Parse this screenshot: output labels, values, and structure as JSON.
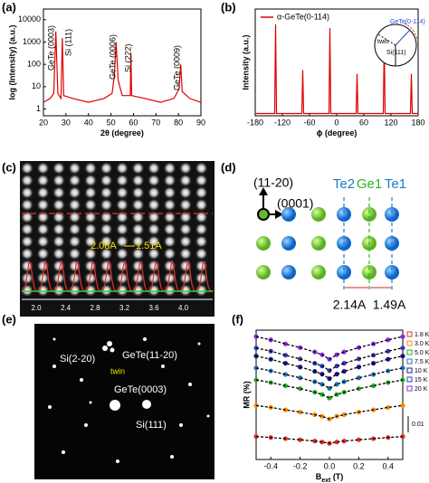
{
  "panel_labels": [
    "(a)",
    "(b)",
    "(c)",
    "(d)",
    "(e)",
    "(f)"
  ],
  "chart_data": [
    {
      "type": "line",
      "xlabel": "2θ (degree)",
      "ylabel": "log (Intensity) (a.u.)",
      "log_y": true,
      "x": [
        20,
        23,
        24.6,
        25.5,
        26.4,
        27.8,
        28.4,
        29,
        33,
        40,
        47,
        50.5,
        51.5,
        52.3,
        53.2,
        55,
        58.6,
        58.9,
        59.2,
        65,
        72,
        78,
        80.3,
        81,
        81.7,
        85,
        90
      ],
      "series": [
        {
          "color": "#e00000",
          "values": [
            2,
            3,
            5,
            3000,
            5,
            3,
            1500,
            4,
            3,
            2,
            3,
            5,
            30,
            1000,
            20,
            4,
            4,
            300,
            4,
            3,
            2,
            3,
            8,
            100,
            6,
            3,
            2
          ]
        }
      ],
      "xlim": [
        20,
        90
      ],
      "xticks": [
        20,
        30,
        40,
        50,
        60,
        70,
        80,
        90
      ],
      "ylim": [
        0.5,
        30000
      ],
      "yticks": [
        1,
        10,
        100,
        1000,
        10000
      ],
      "annotations": [
        "GeTe (0003)",
        "Si (111)",
        "GeTe (0006)",
        "Si (222)",
        "GeTe (0009)"
      ]
    },
    {
      "type": "line",
      "xlabel": "ϕ (degree)",
      "ylabel": "Intensity (a.u.)",
      "x": [
        -180,
        -137,
        -135,
        -133,
        -77,
        -75,
        -73,
        -17,
        -15,
        -13,
        43,
        45,
        47,
        103,
        105,
        107,
        163,
        165,
        167,
        180
      ],
      "series": [
        {
          "name": "α-GeTe(0-114)",
          "color": "#e00000",
          "values": [
            0.3,
            0.3,
            12,
            0.3,
            0.3,
            6,
            0.3,
            0.3,
            11.5,
            0.3,
            0.3,
            5.5,
            0.3,
            0.3,
            9.5,
            0.3,
            0.3,
            5.5,
            0.3,
            0.3
          ]
        }
      ],
      "xlim": [
        -180,
        180
      ],
      "xticks": [
        -180,
        -120,
        -60,
        0,
        60,
        120,
        180
      ],
      "ylim": [
        0,
        14
      ],
      "legend": "upper left",
      "inset_labels": [
        "GeTe(0-114)",
        "twin",
        "Si(111)"
      ]
    },
    {
      "type": "line",
      "markers": true,
      "xlabel": "B",
      "xlabel_sub": "ext",
      "xlabel_unit": " (T)",
      "ylabel": "MR (%)",
      "x": [
        -0.5,
        -0.4,
        -0.3,
        -0.2,
        -0.1,
        -0.05,
        0,
        0.05,
        0.1,
        0.2,
        0.3,
        0.4,
        0.5
      ],
      "series": [
        {
          "name": "1.8 K",
          "color": "#e03030",
          "values": [
            0.0142,
            0.0136,
            0.0129,
            0.0122,
            0.0114,
            0.0108,
            0.01,
            0.0108,
            0.0114,
            0.0122,
            0.0129,
            0.0136,
            0.0142
          ]
        },
        {
          "name": "3.0 K",
          "color": "#ff8c00",
          "values": [
            0.0334,
            0.0322,
            0.0307,
            0.0293,
            0.0277,
            0.0267,
            0.025,
            0.0267,
            0.0277,
            0.0293,
            0.0307,
            0.0322,
            0.0334
          ]
        },
        {
          "name": "5.0 K",
          "color": "#22b022",
          "values": [
            0.0492,
            0.0476,
            0.0456,
            0.0438,
            0.0416,
            0.0402,
            0.038,
            0.0402,
            0.0416,
            0.0438,
            0.0456,
            0.0476,
            0.0492
          ]
        },
        {
          "name": "7.5 K",
          "color": "#1f77b4",
          "values": [
            0.0566,
            0.0548,
            0.0526,
            0.0505,
            0.0481,
            0.0465,
            0.044,
            0.0465,
            0.0481,
            0.0505,
            0.0526,
            0.0548,
            0.0566
          ]
        },
        {
          "name": "10 K",
          "color": "#1a1a8a",
          "values": [
            0.064,
            0.062,
            0.0595,
            0.0572,
            0.0545,
            0.0528,
            0.05,
            0.0528,
            0.0545,
            0.0572,
            0.0595,
            0.062,
            0.064
          ]
        },
        {
          "name": "15 K",
          "color": "#3a3ab0",
          "values": [
            0.069,
            0.067,
            0.0645,
            0.0622,
            0.0595,
            0.0578,
            0.055,
            0.0578,
            0.0595,
            0.0622,
            0.0645,
            0.067,
            0.069
          ]
        },
        {
          "name": "20 K",
          "color": "#8a2be2",
          "values": [
            0.076,
            0.074,
            0.0715,
            0.0692,
            0.0665,
            0.0648,
            0.062,
            0.0648,
            0.0665,
            0.0692,
            0.0715,
            0.074,
            0.076
          ]
        }
      ],
      "xlim": [
        -0.5,
        0.5
      ],
      "xticks": [
        -0.4,
        -0.2,
        {
          "value": 0,
          "label": "0.0"
        },
        0.2,
        0.4
      ],
      "ylim": [
        0,
        0.08
      ],
      "legend": "right",
      "scale_bar": 0.01
    }
  ],
  "stem_image": {
    "distances": [
      "2.08A",
      "1.51A"
    ],
    "scale": [
      "2.0",
      "2.4",
      "2.8",
      "3.2",
      "3.6",
      "4.0"
    ]
  },
  "structure_diagram": {
    "axes": [
      "(11-20)",
      "(0001)"
    ],
    "planes": [
      "Te2",
      "Ge1",
      "Te1"
    ],
    "distances": [
      "2.14A",
      "1.49A"
    ]
  },
  "diffraction": {
    "labels": [
      "Si(2-20)",
      "GeTe(11-20)",
      "twin",
      "GeTe(0003)",
      "Si(111)"
    ]
  }
}
